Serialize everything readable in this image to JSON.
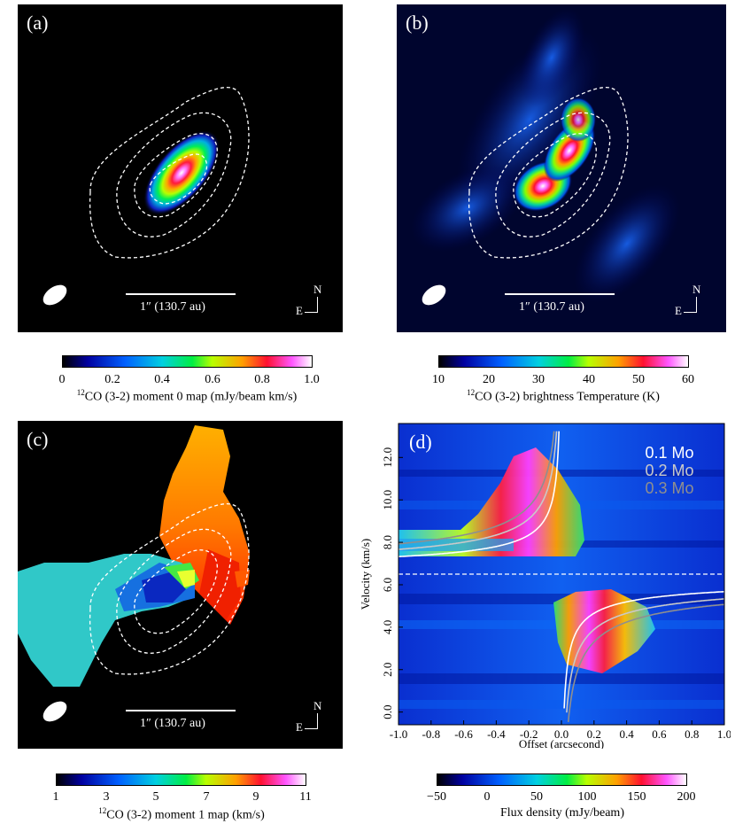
{
  "panels": {
    "a": {
      "label": "(a)",
      "scalebar": "1″ (130.7 au)",
      "compass_n": "N",
      "compass_e": "E"
    },
    "b": {
      "label": "(b)",
      "scalebar": "1″ (130.7 au)",
      "compass_n": "N",
      "compass_e": "E"
    },
    "c": {
      "label": "(c)",
      "scalebar": "1″ (130.7 au)",
      "compass_n": "N",
      "compass_e": "E"
    },
    "d": {
      "label": "(d)"
    }
  },
  "colorbars": {
    "a": {
      "label": "$^{12}$CO (3-2) moment 0 map (mJy/beam km/s)",
      "label_sup": "12",
      "label_text": "CO (3-2) moment 0 map (mJy/beam km/s)",
      "ticks": [
        "0",
        "0.2",
        "0.4",
        "0.6",
        "0.8",
        "1.0"
      ],
      "range": [
        0,
        1.0
      ]
    },
    "b": {
      "label_sup": "12",
      "label_text": "CO (3-2) brightness Temperature (K)",
      "ticks": [
        "10",
        "20",
        "30",
        "40",
        "50",
        "60"
      ],
      "range": [
        10,
        60
      ]
    },
    "c": {
      "label_sup": "12",
      "label_text": "CO (3-2) moment 1 map (km/s)",
      "ticks": [
        "1",
        "3",
        "5",
        "7",
        "9",
        "11"
      ],
      "range": [
        1,
        11
      ]
    },
    "d": {
      "label_text": "Flux density (mJy/beam)",
      "ticks": [
        "−50",
        "0",
        "50",
        "100",
        "150",
        "200"
      ],
      "range": [
        -50,
        200
      ]
    }
  },
  "chart_data": [
    {
      "type": "heatmap",
      "panel": "a",
      "title": "",
      "colorbar_label": "12CO (3-2) moment 0 map (mJy/beam km/s)",
      "colorbar_range": [
        0,
        1.0
      ]
    },
    {
      "type": "heatmap",
      "panel": "b",
      "title": "",
      "colorbar_label": "12CO (3-2) brightness Temperature (K)",
      "colorbar_range": [
        10,
        60
      ]
    },
    {
      "type": "heatmap",
      "panel": "c",
      "title": "",
      "colorbar_label": "12CO (3-2) moment 1 map (km/s)",
      "colorbar_range": [
        1,
        11
      ]
    },
    {
      "type": "heatmap",
      "panel": "d",
      "xlabel": "Offset (arcsecond)",
      "ylabel": "Velocity (km/s)",
      "xlim": [
        -1.0,
        1.0
      ],
      "ylim": [
        -0.6,
        13.6
      ],
      "xticks": [
        "-1.0",
        "-0.8",
        "-0.6",
        "-0.4",
        "-0.2",
        "0.0",
        "0.2",
        "0.4",
        "0.6",
        "0.8",
        "1.0"
      ],
      "yticks": [
        "0.0",
        "2.0",
        "4.0",
        "6.0",
        "8.0",
        "10.0",
        "12.0"
      ],
      "systemic_velocity": 6.5,
      "colorbar_label": "Flux density (mJy/beam)",
      "colorbar_range": [
        -50,
        200
      ],
      "series": [
        {
          "name": "0.1 Mo",
          "color": "#ffffff"
        },
        {
          "name": "0.2 Mo",
          "color": "#c9c9c9"
        },
        {
          "name": "0.3 Mo",
          "color": "#8f8f8f"
        }
      ]
    }
  ]
}
